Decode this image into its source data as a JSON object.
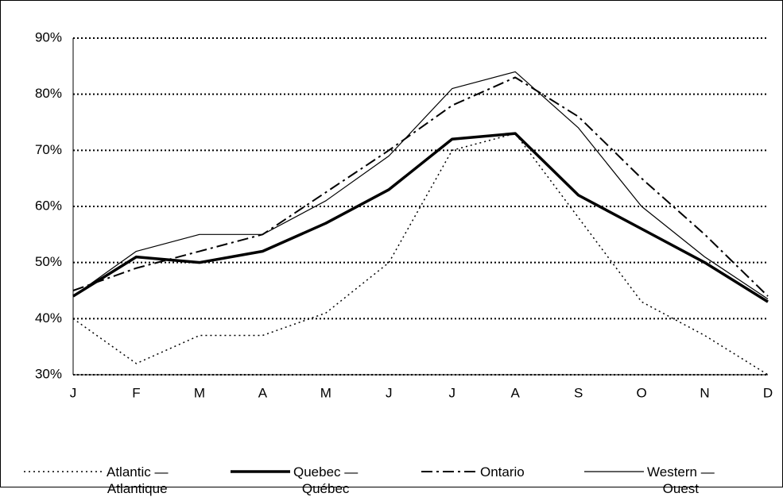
{
  "chart_data": {
    "type": "line",
    "categories": [
      "J",
      "F",
      "M",
      "A",
      "M",
      "J",
      "J",
      "A",
      "S",
      "O",
      "N",
      "D"
    ],
    "series": [
      {
        "name": "Atlantic —\nAtlantique",
        "color": "#000000",
        "style": "dotted",
        "values": [
          40,
          32,
          37,
          37,
          41,
          50,
          70,
          73,
          58,
          43,
          37,
          30
        ]
      },
      {
        "name": "Quebec —\nQuébec",
        "color": "#000000",
        "style": "thick",
        "values": [
          44,
          51,
          50,
          52,
          57,
          63,
          72,
          73,
          62,
          56,
          50,
          43
        ]
      },
      {
        "name": "Ontario",
        "color": "#000000",
        "style": "dash-dot",
        "values": [
          45,
          49,
          52,
          55,
          62.5,
          70,
          78,
          83,
          76,
          65,
          55,
          44
        ]
      },
      {
        "name": "Western —\nOuest",
        "color": "#000000",
        "style": "thin",
        "values": [
          44,
          52,
          55,
          55,
          61,
          69,
          81,
          84,
          74,
          60,
          51,
          43.5
        ]
      }
    ],
    "ylim": [
      30,
      90
    ],
    "yticks": [
      {
        "value": 30,
        "label": "30%"
      },
      {
        "value": 40,
        "label": "40%"
      },
      {
        "value": 50,
        "label": "50%"
      },
      {
        "value": 60,
        "label": "60%"
      },
      {
        "value": 70,
        "label": "70%"
      },
      {
        "value": 80,
        "label": "80%"
      },
      {
        "value": 90,
        "label": "90%"
      }
    ],
    "grid": true,
    "legend": "bottom"
  }
}
